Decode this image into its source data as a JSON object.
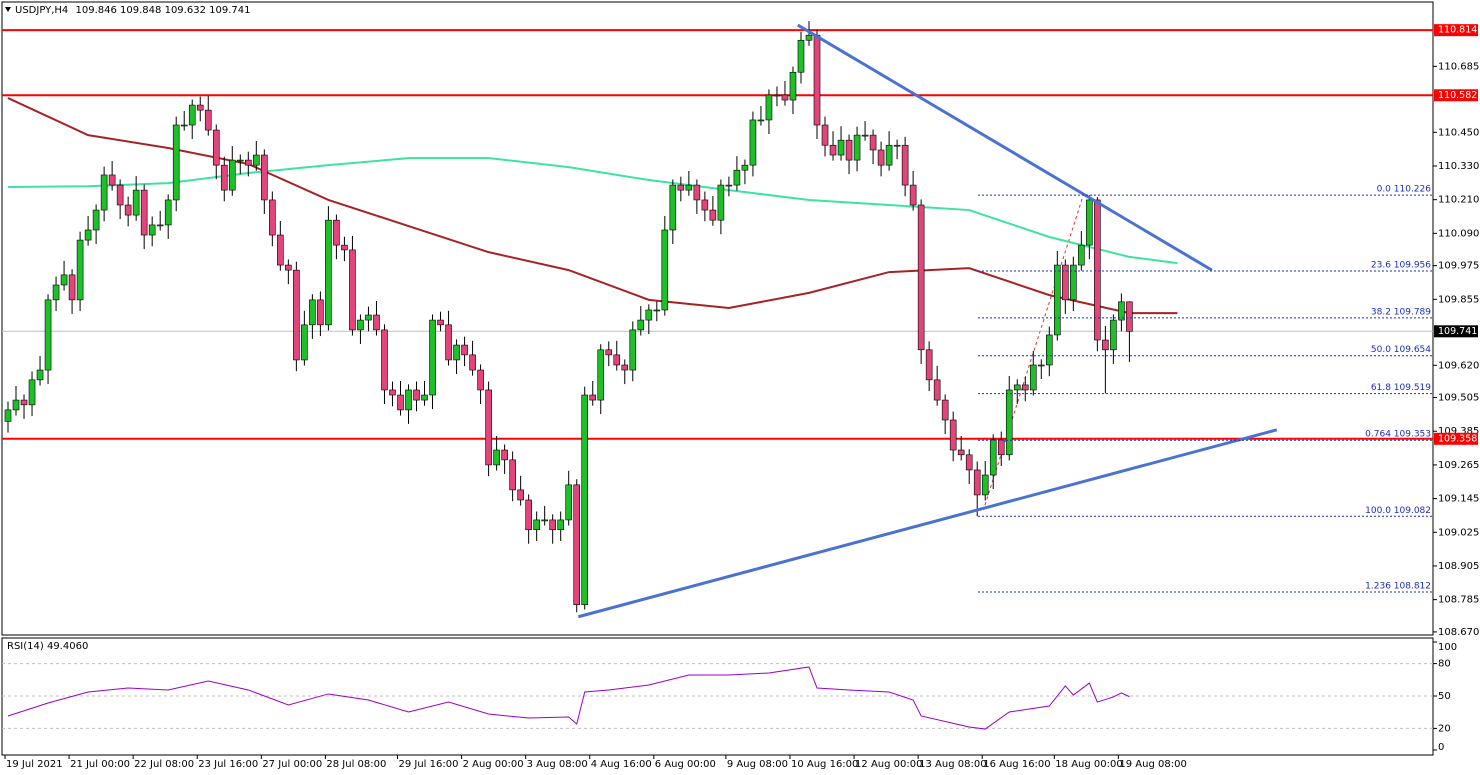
{
  "chart_data": {
    "type": "candlestick",
    "symbol": "USDJPY,H4",
    "categories": [
      "19 Jul 2021",
      null,
      null,
      null,
      null,
      null,
      null,
      null,
      "21 Jul 00:00",
      null,
      null,
      null,
      null,
      null,
      null,
      null,
      "22 Jul 08:00",
      null,
      null,
      null,
      null,
      null,
      null,
      null,
      "23 Jul 16:00",
      null,
      null,
      null,
      null,
      null,
      null,
      null,
      "27 Jul 00:00",
      null,
      null,
      null,
      null,
      null,
      null,
      null,
      "28 Jul 08:00",
      null,
      null,
      null,
      null,
      null,
      null,
      null,
      null,
      "29 Jul 16:00",
      null,
      null,
      null,
      null,
      null,
      null,
      null,
      "2 Aug 00:00",
      null,
      null,
      null,
      null,
      null,
      null,
      null,
      "3 Aug 08:00",
      null,
      null,
      null,
      null,
      null,
      null,
      null,
      "4 Aug 16:00",
      null,
      null,
      null,
      null,
      null,
      null,
      null,
      "6 Aug 00:00",
      null,
      null,
      null,
      null,
      null,
      null,
      null,
      null,
      "9 Aug 08:00",
      null,
      null,
      null,
      null,
      null,
      null,
      null,
      "10 Aug 16:00",
      null,
      null,
      null,
      null,
      null,
      null,
      null,
      "12 Aug 00:00",
      null,
      null,
      null,
      null,
      null,
      null,
      null,
      "13 Aug 08:00",
      null,
      null,
      null,
      null,
      null,
      null,
      null,
      "16 Aug 16:00",
      null,
      null,
      null,
      null,
      null,
      null,
      null,
      null,
      "18 Aug 00:00",
      null,
      null,
      null,
      null,
      null,
      null,
      null,
      "19 Aug 08:00",
      null
    ],
    "candles": [
      [
        109.42,
        109.491,
        109.38,
        109.461
      ],
      [
        109.461,
        109.546,
        109.441,
        109.496
      ],
      [
        109.496,
        109.516,
        109.429,
        109.479
      ],
      [
        109.479,
        109.598,
        109.439,
        109.568
      ],
      [
        109.568,
        109.653,
        109.548,
        109.603
      ],
      [
        109.603,
        109.873,
        109.553,
        109.853
      ],
      [
        109.853,
        109.936,
        109.813,
        109.906
      ],
      [
        109.906,
        109.992,
        109.886,
        109.942
      ],
      [
        109.942,
        109.962,
        109.803,
        109.853
      ],
      [
        109.853,
        110.096,
        109.813,
        110.066
      ],
      [
        110.066,
        110.152,
        110.046,
        110.102
      ],
      [
        110.102,
        110.193,
        110.052,
        110.173
      ],
      [
        110.173,
        110.328,
        110.133,
        110.298
      ],
      [
        110.298,
        110.348,
        110.242,
        110.262
      ],
      [
        110.262,
        110.282,
        110.141,
        110.191
      ],
      [
        110.191,
        110.221,
        110.115,
        110.155
      ],
      [
        110.155,
        110.294,
        110.135,
        110.244
      ],
      [
        110.244,
        110.264,
        110.034,
        110.084
      ],
      [
        110.084,
        110.15,
        110.044,
        110.12
      ],
      [
        110.12,
        110.17,
        110.1,
        110.12
      ],
      [
        110.12,
        110.229,
        110.07,
        110.209
      ],
      [
        110.209,
        110.506,
        110.169,
        110.476
      ],
      [
        110.476,
        110.526,
        110.456,
        110.476
      ],
      [
        110.476,
        110.567,
        110.426,
        110.547
      ],
      [
        110.547,
        110.577,
        110.489,
        110.529
      ],
      [
        110.529,
        110.579,
        110.438,
        110.458
      ],
      [
        110.458,
        110.478,
        110.283,
        110.333
      ],
      [
        110.333,
        110.363,
        110.204,
        110.244
      ],
      [
        110.244,
        110.401,
        110.224,
        110.351
      ],
      [
        110.351,
        110.371,
        110.301,
        110.351
      ],
      [
        110.351,
        110.381,
        110.293,
        110.333
      ],
      [
        110.333,
        110.419,
        110.313,
        110.369
      ],
      [
        110.369,
        110.389,
        110.159,
        110.209
      ],
      [
        110.209,
        110.239,
        110.044,
        110.084
      ],
      [
        110.084,
        110.134,
        109.957,
        109.977
      ],
      [
        109.977,
        109.997,
        109.909,
        109.959
      ],
      [
        109.959,
        109.989,
        109.599,
        109.639
      ],
      [
        109.639,
        109.814,
        109.619,
        109.764
      ],
      [
        109.764,
        109.873,
        109.714,
        109.853
      ],
      [
        109.853,
        109.883,
        109.724,
        109.764
      ],
      [
        109.764,
        110.187,
        109.744,
        110.137
      ],
      [
        110.137,
        110.157,
        109.998,
        110.048
      ],
      [
        110.048,
        110.078,
        109.991,
        110.031
      ],
      [
        110.031,
        110.081,
        109.726,
        109.746
      ],
      [
        109.746,
        109.801,
        109.696,
        109.781
      ],
      [
        109.781,
        109.829,
        109.741,
        109.799
      ],
      [
        109.799,
        109.849,
        109.726,
        109.746
      ],
      [
        109.746,
        109.766,
        109.482,
        109.532
      ],
      [
        109.532,
        109.562,
        109.474,
        109.514
      ],
      [
        109.514,
        109.564,
        109.441,
        109.461
      ],
      [
        109.461,
        109.552,
        109.411,
        109.532
      ],
      [
        109.532,
        109.562,
        109.456,
        109.496
      ],
      [
        109.496,
        109.564,
        109.476,
        109.514
      ],
      [
        109.514,
        109.801,
        109.464,
        109.781
      ],
      [
        109.781,
        109.811,
        109.741,
        109.764
      ],
      [
        109.764,
        109.814,
        109.619,
        109.639
      ],
      [
        109.639,
        109.712,
        109.589,
        109.692
      ],
      [
        109.692,
        109.722,
        109.617,
        109.657
      ],
      [
        109.657,
        109.707,
        109.583,
        109.603
      ],
      [
        109.603,
        109.623,
        109.482,
        109.532
      ],
      [
        109.532,
        109.562,
        109.225,
        109.265
      ],
      [
        109.265,
        109.368,
        109.245,
        109.318
      ],
      [
        109.318,
        109.338,
        109.233,
        109.283
      ],
      [
        109.283,
        109.313,
        109.136,
        109.176
      ],
      [
        109.176,
        109.226,
        109.12,
        109.14
      ],
      [
        109.14,
        109.16,
        108.984,
        109.034
      ],
      [
        109.034,
        109.099,
        108.994,
        109.069
      ],
      [
        109.069,
        109.119,
        109.049,
        109.069
      ],
      [
        109.069,
        109.089,
        108.984,
        109.034
      ],
      [
        109.034,
        109.099,
        108.994,
        109.069
      ],
      [
        109.069,
        109.244,
        109.049,
        109.194
      ],
      [
        109.194,
        109.214,
        108.74,
        108.767
      ],
      [
        108.767,
        109.544,
        108.75,
        109.514
      ],
      [
        109.514,
        109.564,
        109.476,
        109.496
      ],
      [
        109.496,
        109.695,
        109.446,
        109.675
      ],
      [
        109.675,
        109.705,
        109.617,
        109.657
      ],
      [
        109.657,
        109.707,
        109.601,
        109.621
      ],
      [
        109.621,
        109.641,
        109.553,
        109.603
      ],
      [
        109.603,
        109.776,
        109.563,
        109.746
      ],
      [
        109.746,
        109.831,
        109.726,
        109.781
      ],
      [
        109.781,
        109.837,
        109.731,
        109.817
      ],
      [
        109.817,
        109.847,
        109.777,
        109.817
      ],
      [
        109.817,
        110.152,
        109.797,
        110.102
      ],
      [
        110.102,
        110.282,
        110.052,
        110.262
      ],
      [
        110.262,
        110.292,
        110.204,
        110.244
      ],
      [
        110.244,
        110.312,
        110.224,
        110.262
      ],
      [
        110.262,
        110.282,
        110.159,
        110.209
      ],
      [
        110.209,
        110.239,
        110.133,
        110.173
      ],
      [
        110.173,
        110.223,
        110.117,
        110.137
      ],
      [
        110.137,
        110.282,
        110.087,
        110.262
      ],
      [
        110.262,
        110.292,
        110.222,
        110.262
      ],
      [
        110.262,
        110.365,
        110.242,
        110.315
      ],
      [
        110.315,
        110.353,
        110.265,
        110.333
      ],
      [
        110.333,
        110.524,
        110.293,
        110.494
      ],
      [
        110.494,
        110.544,
        110.474,
        110.494
      ],
      [
        110.494,
        110.603,
        110.444,
        110.583
      ],
      [
        110.583,
        110.613,
        110.543,
        110.583
      ],
      [
        110.583,
        110.633,
        110.545,
        110.565
      ],
      [
        110.565,
        110.684,
        110.515,
        110.664
      ],
      [
        110.664,
        110.808,
        110.624,
        110.778
      ],
      [
        110.778,
        110.846,
        110.758,
        110.796
      ],
      [
        110.796,
        110.816,
        110.426,
        110.476
      ],
      [
        110.476,
        110.506,
        110.364,
        110.404
      ],
      [
        110.404,
        110.454,
        110.349,
        110.369
      ],
      [
        110.369,
        110.472,
        110.349,
        110.422
      ],
      [
        110.422,
        110.442,
        110.301,
        110.351
      ],
      [
        110.351,
        110.47,
        110.311,
        110.44
      ],
      [
        110.44,
        110.49,
        110.42,
        110.44
      ],
      [
        110.44,
        110.46,
        110.337,
        110.387
      ],
      [
        110.387,
        110.417,
        110.293,
        110.333
      ],
      [
        110.333,
        110.454,
        110.313,
        110.404
      ],
      [
        110.404,
        110.424,
        110.354,
        110.404
      ],
      [
        110.404,
        110.434,
        110.222,
        110.262
      ],
      [
        110.262,
        110.312,
        110.171,
        110.191
      ],
      [
        110.191,
        110.211,
        109.625,
        109.675
      ],
      [
        109.675,
        109.705,
        109.528,
        109.568
      ],
      [
        109.568,
        109.618,
        109.476,
        109.496
      ],
      [
        109.496,
        109.516,
        109.375,
        109.425
      ],
      [
        109.425,
        109.455,
        109.278,
        109.318
      ],
      [
        109.318,
        109.368,
        109.281,
        109.301
      ],
      [
        109.301,
        109.321,
        109.197,
        109.247
      ],
      [
        109.247,
        109.277,
        109.082,
        109.158
      ],
      [
        109.158,
        109.279,
        109.138,
        109.229
      ],
      [
        109.229,
        109.374,
        109.179,
        109.354
      ],
      [
        109.354,
        109.384,
        109.261,
        109.301
      ],
      [
        109.301,
        109.582,
        109.281,
        109.532
      ],
      [
        109.532,
        109.57,
        109.482,
        109.55
      ],
      [
        109.55,
        109.58,
        109.492,
        109.532
      ],
      [
        109.532,
        109.671,
        109.512,
        109.621
      ],
      [
        109.621,
        109.641,
        109.571,
        109.621
      ],
      [
        109.621,
        109.758,
        109.581,
        109.728
      ],
      [
        109.728,
        110.027,
        109.708,
        109.977
      ],
      [
        109.977,
        109.997,
        109.803,
        109.853
      ],
      [
        109.853,
        110.007,
        109.813,
        109.977
      ],
      [
        109.977,
        110.098,
        109.957,
        110.048
      ],
      [
        110.048,
        110.226,
        109.998,
        110.209
      ],
      [
        110.209,
        110.219,
        109.67,
        109.71
      ],
      [
        109.71,
        109.76,
        109.52,
        109.675
      ],
      [
        109.675,
        109.801,
        109.625,
        109.781
      ],
      [
        109.781,
        109.876,
        109.741,
        109.846
      ],
      [
        109.846,
        109.848,
        109.632,
        109.741
      ]
    ],
    "bull_color": "#1fbf2a",
    "bear_color": "#e2457c",
    "ylim": [
      108.659,
      110.843
    ],
    "yticks": [
      110.685,
      {
        "value": 110.45,
        "label": "110.450"
      },
      {
        "value": 110.33,
        "label": "110.330"
      },
      {
        "value": 110.21,
        "label": "110.210"
      },
      {
        "value": 110.09,
        "label": "110.090"
      },
      109.975,
      109.855,
      {
        "value": 109.62,
        "label": "109.620"
      },
      109.505,
      109.385,
      109.265,
      109.145,
      109.025,
      108.905,
      108.785,
      {
        "value": 108.67,
        "label": "108.670"
      }
    ],
    "hlines": [
      {
        "value": 110.814,
        "color": "#ff0000"
      },
      {
        "value": 110.582,
        "color": "#ff0000"
      },
      {
        "value": 109.358,
        "color": "#ff0000"
      }
    ],
    "ma": [
      {
        "color": "#a52323",
        "x": [
          0,
          10,
          20,
          30,
          40,
          50,
          60,
          70,
          80,
          90,
          100,
          110,
          120,
          130,
          140,
          146
        ],
        "values": [
          110.572,
          110.44,
          110.394,
          110.337,
          110.209,
          110.116,
          110.023,
          109.959,
          109.853,
          109.824,
          109.878,
          109.952,
          109.966,
          109.87,
          109.806,
          109.806
        ]
      },
      {
        "color": "#3ee3a0",
        "x": [
          0,
          10,
          20,
          30,
          40,
          50,
          60,
          70,
          80,
          90,
          100,
          110,
          120,
          130,
          140,
          146
        ],
        "values": [
          110.255,
          110.258,
          110.269,
          110.305,
          110.333,
          110.358,
          110.358,
          110.326,
          110.28,
          110.244,
          110.209,
          110.191,
          110.173,
          110.077,
          110.006,
          109.984
        ]
      }
    ],
    "trendlines": [
      {
        "color": "#4a72d0",
        "x": [
          98.6,
          150.3
        ],
        "values": [
          110.832,
          109.959
        ]
      },
      {
        "color": "#4a72d0",
        "x": [
          71.2,
          158.4
        ],
        "values": [
          108.724,
          109.39
        ]
      }
    ],
    "fib": {
      "color": "#1a2fb8",
      "levels": [
        {
          "value": 110.226,
          "label": "0.0 110.226"
        },
        {
          "value": 109.956,
          "label": "23.6 109.956"
        },
        {
          "value": 109.789,
          "label": "38.2 109.789"
        },
        {
          "value": 109.654,
          "label": "50.0 109.654"
        },
        {
          "value": 109.519,
          "label": "61.8 109.519"
        },
        {
          "value": 109.353,
          "label": "0.764 109.353"
        },
        {
          "value": 109.082,
          "label": "100.0 109.082"
        },
        {
          "value": 108.812,
          "label": "1.236 108.812"
        }
      ]
    },
    "rsi": {
      "title": "RSI(14) 49.4060",
      "color": "#9900cc",
      "x": [
        0,
        5,
        10,
        15,
        20,
        25,
        30,
        35,
        40,
        45,
        50,
        55,
        60,
        65,
        70,
        71,
        72,
        75,
        80,
        85,
        90,
        95,
        100,
        101,
        105,
        110,
        113,
        114,
        120,
        122,
        125,
        130,
        132,
        133,
        135,
        136,
        138,
        139,
        140
      ],
      "values": [
        31.5,
        43.5,
        53.7,
        57.4,
        55.6,
        63.9,
        55.6,
        41.7,
        51.9,
        46.3,
        35.2,
        44.4,
        33.3,
        29.6,
        30.6,
        24.1,
        53.7,
        55.6,
        60.2,
        69.4,
        69.4,
        71.3,
        76.9,
        57.4,
        55.6,
        53.7,
        46.3,
        31.5,
        21.3,
        19.4,
        35.2,
        40.7,
        59.3,
        50.9,
        62.0,
        44.4,
        49.1,
        52.8,
        49.406
      ],
      "ylim": [
        0,
        100
      ],
      "yticks": [
        100,
        80,
        50,
        20,
        0
      ],
      "levels": [
        80,
        50,
        20
      ]
    }
  }
}
